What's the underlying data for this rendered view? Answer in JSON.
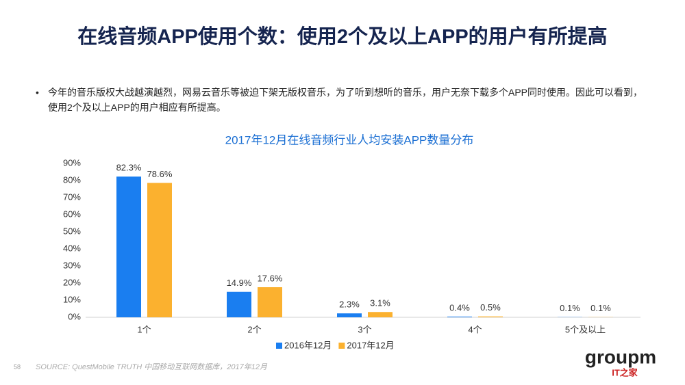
{
  "header": {
    "title": "在线音频APP使用个数：使用2个及以上APP的用户有所提高"
  },
  "bullet": "今年的音乐版权大战越演越烈，网易云音乐等被迫下架无版权音乐，为了听到想听的音乐，用户无奈下载多个APP同时使用。因此可以看到，使用2个及以上APP的用户相应有所提高。",
  "chart_data": {
    "type": "bar",
    "title": "2017年12月在线音频行业人均安装APP数量分布",
    "categories": [
      "1个",
      "2个",
      "3个",
      "4个",
      "5个及以上"
    ],
    "series": [
      {
        "name": "2016年12月",
        "color": "#1a7ef0",
        "values": [
          82.3,
          14.9,
          2.3,
          0.4,
          0.1
        ],
        "value_labels": [
          "82.3%",
          "14.9%",
          "2.3%",
          "0.4%",
          "0.1%"
        ]
      },
      {
        "name": "2017年12月",
        "color": "#fbb12f",
        "values": [
          78.6,
          17.6,
          3.1,
          0.5,
          0.1
        ],
        "value_labels": [
          "78.6%",
          "17.6%",
          "3.1%",
          "0.5%",
          "0.1%"
        ]
      }
    ],
    "ylim": [
      0,
      90
    ],
    "yticks": [
      {
        "value": 0,
        "label": "0%"
      },
      {
        "value": 10,
        "label": "10%"
      },
      {
        "value": 20,
        "label": "20%"
      },
      {
        "value": 30,
        "label": "30%"
      },
      {
        "value": 40,
        "label": "40%"
      },
      {
        "value": 50,
        "label": "50%"
      },
      {
        "value": 60,
        "label": "60%"
      },
      {
        "value": 70,
        "label": "70%"
      },
      {
        "value": 80,
        "label": "80%"
      },
      {
        "value": 90,
        "label": "90%"
      }
    ],
    "grid": false,
    "legend": "bottom"
  },
  "footer": {
    "page": "58",
    "source": "SOURCE: QuestMobile TRUTH 中国移动互联网数据库，2017年12月",
    "logo": "groupm",
    "logo_sub": "IT之家"
  }
}
